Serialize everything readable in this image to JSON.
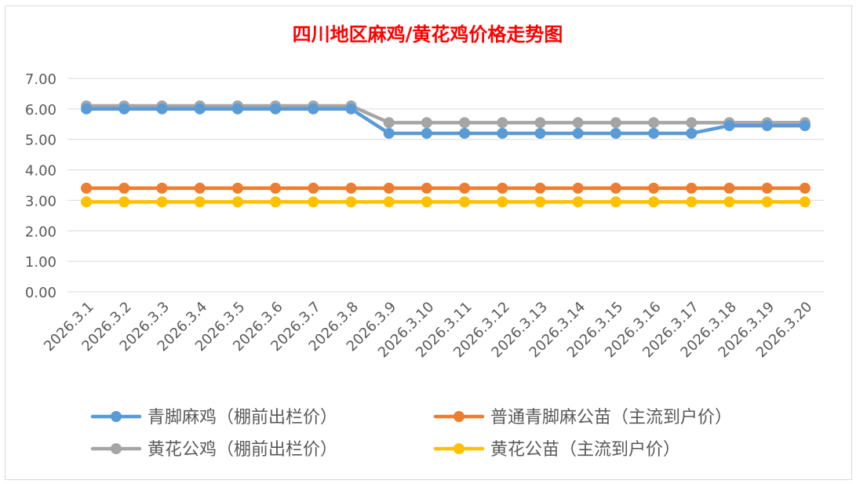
{
  "chart_data": {
    "type": "line",
    "title": "四川地区麻鸡/黄花鸡价格走势图",
    "title_color": "#ff0000",
    "xlabel": "",
    "ylabel": "",
    "ylim": [
      0,
      7
    ],
    "y_ticks": [
      "0.00",
      "1.00",
      "2.00",
      "3.00",
      "4.00",
      "5.00",
      "6.00",
      "7.00"
    ],
    "grid": "horizontal",
    "legend_position": "bottom",
    "categories": [
      "2026.3.1",
      "2026.3.2",
      "2026.3.3",
      "2026.3.4",
      "2026.3.5",
      "2026.3.6",
      "2026.3.7",
      "2026.3.8",
      "2026.3.9",
      "2026.3.10",
      "2026.3.11",
      "2026.3.12",
      "2026.3.13",
      "2026.3.14",
      "2026.3.15",
      "2026.3.16",
      "2026.3.17",
      "2026.3.18",
      "2026.3.19",
      "2026.3.20"
    ],
    "series": [
      {
        "name": "青脚麻鸡（棚前出栏价）",
        "color": "#5b9bd5",
        "values": [
          6.0,
          6.0,
          6.0,
          6.0,
          6.0,
          6.0,
          6.0,
          6.0,
          5.2,
          5.2,
          5.2,
          5.2,
          5.2,
          5.2,
          5.2,
          5.2,
          5.2,
          5.45,
          5.45,
          5.45
        ]
      },
      {
        "name": "普通青脚麻公苗（主流到户价）",
        "color": "#ed7d31",
        "values": [
          3.4,
          3.4,
          3.4,
          3.4,
          3.4,
          3.4,
          3.4,
          3.4,
          3.4,
          3.4,
          3.4,
          3.4,
          3.4,
          3.4,
          3.4,
          3.4,
          3.4,
          3.4,
          3.4,
          3.4
        ]
      },
      {
        "name": "黄花公鸡（棚前出栏价）",
        "color": "#a5a5a5",
        "values": [
          6.1,
          6.1,
          6.1,
          6.1,
          6.1,
          6.1,
          6.1,
          6.1,
          5.55,
          5.55,
          5.55,
          5.55,
          5.55,
          5.55,
          5.55,
          5.55,
          5.55,
          5.55,
          5.55,
          5.55
        ]
      },
      {
        "name": "黄花公苗（主流到户价）",
        "color": "#ffc000",
        "values": [
          2.95,
          2.95,
          2.95,
          2.95,
          2.95,
          2.95,
          2.95,
          2.95,
          2.95,
          2.95,
          2.95,
          2.95,
          2.95,
          2.95,
          2.95,
          2.95,
          2.95,
          2.95,
          2.95,
          2.95
        ]
      }
    ],
    "draw_order": [
      2,
      0,
      1,
      3
    ]
  }
}
